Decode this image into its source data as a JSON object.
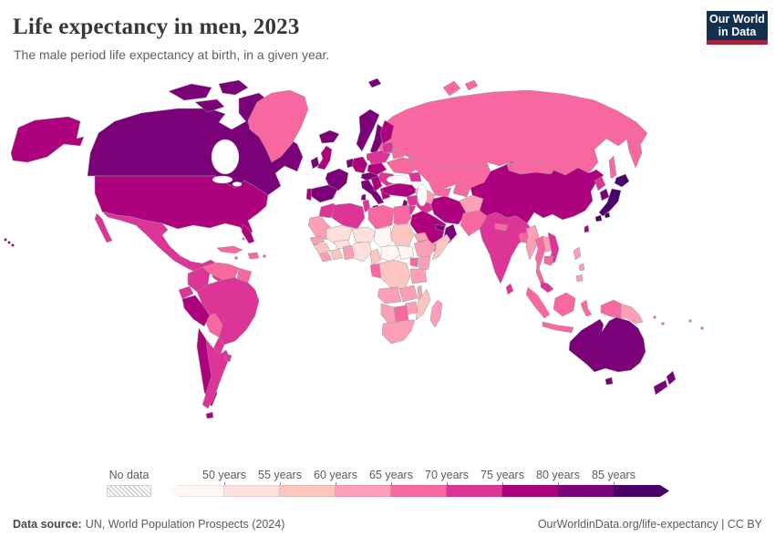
{
  "header": {
    "title": "Life expectancy in men, 2023",
    "subtitle": "The male period life expectancy at birth, in a given year."
  },
  "logo": {
    "line1": "Our World",
    "line2": "in Data",
    "bg": "#12304f",
    "accent": "#a8233a"
  },
  "legend": {
    "no_data_label": "No data",
    "tick_labels": [
      "50 years",
      "55 years",
      "60 years",
      "65 years",
      "70 years",
      "75 years",
      "80 years",
      "85 years"
    ]
  },
  "footer": {
    "source_label": "Data source:",
    "source_text": "UN, World Population Prospects (2024)",
    "right_text": "OurWorldinData.org/life-expectancy | CC BY"
  },
  "chart_data": {
    "type": "choropleth",
    "title": "Life expectancy in men, 2023",
    "unit": "years",
    "year": 2023,
    "legend_note": "values binned every 5 years from <50 to 85+",
    "bins": [
      {
        "range": "<50",
        "color": "#fff7f3"
      },
      {
        "range": "50-55",
        "color": "#fde0dd"
      },
      {
        "range": "55-60",
        "color": "#fcc5c0"
      },
      {
        "range": "60-65",
        "color": "#fa9fb5"
      },
      {
        "range": "65-70",
        "color": "#f768a1"
      },
      {
        "range": "70-75",
        "color": "#dd3497"
      },
      {
        "range": "75-80",
        "color": "#ae017e"
      },
      {
        "range": "80-85",
        "color": "#7a0177"
      },
      {
        "range": "85+",
        "color": "#49006a"
      }
    ],
    "countries": {
      "usa": {
        "name": "United States",
        "range": "75-80"
      },
      "canada": {
        "name": "Canada",
        "range": "80-85"
      },
      "greenland": {
        "name": "Greenland",
        "range": "65-70"
      },
      "mexico": {
        "name": "Mexico",
        "range": "70-75"
      },
      "central-america": {
        "name": "Central America",
        "range": "70-75"
      },
      "panama-costa-rica": {
        "name": "Panama / Costa Rica",
        "range": "70-75"
      },
      "cuba": {
        "name": "Cuba",
        "range": "65-70"
      },
      "hispaniola": {
        "name": "Hispaniola",
        "range": "65-70"
      },
      "caribbean-islands": {
        "name": "Caribbean islands",
        "range": "65-70"
      },
      "venezuela": {
        "name": "Venezuela",
        "range": "65-70"
      },
      "guianas": {
        "name": "Guyana / Suriname",
        "range": "65-70"
      },
      "colombia": {
        "name": "Colombia",
        "range": "70-75"
      },
      "ecuador": {
        "name": "Ecuador",
        "range": "70-75"
      },
      "peru": {
        "name": "Peru",
        "range": "75-80"
      },
      "brazil": {
        "name": "Brazil",
        "range": "70-75"
      },
      "bolivia": {
        "name": "Bolivia",
        "range": "65-70"
      },
      "paraguay": {
        "name": "Paraguay",
        "range": "70-75"
      },
      "chile": {
        "name": "Chile",
        "range": "75-80"
      },
      "argentina": {
        "name": "Argentina",
        "range": "70-75"
      },
      "uruguay": {
        "name": "Uruguay",
        "range": "70-75"
      },
      "iceland": {
        "name": "Iceland",
        "range": "80-85"
      },
      "norway": {
        "name": "Norway",
        "range": "80-85"
      },
      "sweden": {
        "name": "Sweden",
        "range": "80-85"
      },
      "finland": {
        "name": "Finland",
        "range": "75-80"
      },
      "denmark": {
        "name": "Denmark",
        "range": "75-80"
      },
      "united-kingdom": {
        "name": "United Kingdom",
        "range": "75-80"
      },
      "ireland": {
        "name": "Ireland",
        "range": "80-85"
      },
      "france": {
        "name": "France",
        "range": "80-85"
      },
      "spain": {
        "name": "Spain",
        "range": "80-85"
      },
      "portugal": {
        "name": "Portugal",
        "range": "75-80"
      },
      "germany": {
        "name": "Germany",
        "range": "75-80"
      },
      "benelux": {
        "name": "Benelux",
        "range": "80-85"
      },
      "switzerland-austria": {
        "name": "Switzerland / Austria",
        "range": "80-85"
      },
      "italy": {
        "name": "Italy",
        "range": "80-85"
      },
      "czechia-region": {
        "name": "Czechia / Slovakia / Hungary",
        "range": "75-80"
      },
      "poland": {
        "name": "Poland",
        "range": "70-75"
      },
      "baltics": {
        "name": "Baltic states",
        "range": "70-75"
      },
      "belarus": {
        "name": "Belarus",
        "range": "65-70"
      },
      "ukraine": {
        "name": "Ukraine",
        "range": "65-70"
      },
      "romania-bulgaria": {
        "name": "Romania / Bulgaria",
        "range": "70-75"
      },
      "west-balkans": {
        "name": "Western Balkans",
        "range": "75-80"
      },
      "greece": {
        "name": "Greece",
        "range": "75-80"
      },
      "russia": {
        "name": "Russia",
        "range": "65-70"
      },
      "turkey": {
        "name": "Turkey",
        "range": "75-80"
      },
      "caucasus": {
        "name": "Caucasus",
        "range": "70-75"
      },
      "syria": {
        "name": "Syria",
        "range": "70-75"
      },
      "israel-lebanon": {
        "name": "Israel / Lebanon",
        "range": "80-85"
      },
      "jordan": {
        "name": "Jordan",
        "range": "70-75"
      },
      "iraq": {
        "name": "Iraq",
        "range": "70-75"
      },
      "iran": {
        "name": "Iran",
        "range": "75-80"
      },
      "saudi-arabia": {
        "name": "Saudi Arabia",
        "range": "75-80"
      },
      "yemen": {
        "name": "Yemen",
        "range": "65-70"
      },
      "oman": {
        "name": "Oman",
        "range": "80-85"
      },
      "uae-qatar": {
        "name": "UAE / Qatar",
        "range": "80-85"
      },
      "kazakhstan": {
        "name": "Kazakhstan",
        "range": "65-70"
      },
      "uzbekistan": {
        "name": "Uzbekistan",
        "range": "65-70"
      },
      "turkmenistan": {
        "name": "Turkmenistan",
        "range": "60-65"
      },
      "kyrgyzstan-tajikistan": {
        "name": "Kyrgyzstan / Tajikistan",
        "range": "65-70"
      },
      "afghanistan": {
        "name": "Afghanistan",
        "range": "60-65"
      },
      "pakistan": {
        "name": "Pakistan",
        "range": "65-70"
      },
      "india": {
        "name": "India",
        "range": "70-75"
      },
      "nepal": {
        "name": "Nepal",
        "range": "65-70"
      },
      "bangladesh": {
        "name": "Bangladesh",
        "range": "65-70"
      },
      "sri-lanka": {
        "name": "Sri Lanka",
        "range": "70-75"
      },
      "myanmar": {
        "name": "Myanmar",
        "range": "60-65"
      },
      "thailand": {
        "name": "Thailand",
        "range": "65-70"
      },
      "laos": {
        "name": "Laos",
        "range": "60-65"
      },
      "vietnam": {
        "name": "Vietnam",
        "range": "70-75"
      },
      "cambodia": {
        "name": "Cambodia",
        "range": "65-70"
      },
      "malaysia": {
        "name": "Malaysia",
        "range": "70-75"
      },
      "indonesia": {
        "name": "Indonesia",
        "range": "65-70"
      },
      "philippines": {
        "name": "Philippines",
        "range": "60-65"
      },
      "papua-new-guinea": {
        "name": "Papua New Guinea",
        "range": "60-65"
      },
      "china": {
        "name": "China",
        "range": "75-80"
      },
      "mongolia": {
        "name": "Mongolia",
        "range": "65-70"
      },
      "north-korea": {
        "name": "North Korea",
        "range": "70-75"
      },
      "south-korea": {
        "name": "South Korea",
        "range": "80-85"
      },
      "japan": {
        "name": "Japan",
        "range": "85+"
      },
      "taiwan": {
        "name": "Taiwan",
        "range": "75-80"
      },
      "australia": {
        "name": "Australia",
        "range": "80-85"
      },
      "new-zealand": {
        "name": "New Zealand",
        "range": "80-85"
      },
      "pacific-islands": {
        "name": "Pacific islands",
        "range": "65-70"
      },
      "morocco": {
        "name": "Morocco",
        "range": "70-75"
      },
      "algeria": {
        "name": "Algeria",
        "range": "70-75"
      },
      "tunisia": {
        "name": "Tunisia",
        "range": "70-75"
      },
      "libya": {
        "name": "Libya",
        "range": "65-70"
      },
      "egypt": {
        "name": "Egypt",
        "range": "65-70"
      },
      "western-sahara-mauritania": {
        "name": "Mauritania / W. Sahara",
        "range": "60-65"
      },
      "mali": {
        "name": "Mali",
        "range": "50-55"
      },
      "niger": {
        "name": "Niger",
        "range": "50-55"
      },
      "chad": {
        "name": "Chad",
        "range": "<50"
      },
      "sudan": {
        "name": "Sudan",
        "range": "55-60"
      },
      "senegal": {
        "name": "Senegal",
        "range": "60-65"
      },
      "guinea-region": {
        "name": "Guinea",
        "range": "55-60"
      },
      "sierra-leone-liberia": {
        "name": "Sierra Leone / Liberia",
        "range": "60-65"
      },
      "ivory-coast": {
        "name": "Côte d'Ivoire",
        "range": "55-60"
      },
      "burkina-faso": {
        "name": "Burkina Faso",
        "range": "50-55"
      },
      "ghana-region": {
        "name": "Ghana / Togo / Benin",
        "range": "60-65"
      },
      "nigeria": {
        "name": "Nigeria",
        "range": "50-55"
      },
      "cameroon": {
        "name": "Cameroon",
        "range": "55-60"
      },
      "central-african-republic": {
        "name": "Central African Republic",
        "range": "<50"
      },
      "south-sudan": {
        "name": "South Sudan",
        "range": "<50"
      },
      "ethiopia": {
        "name": "Ethiopia",
        "range": "60-65"
      },
      "eritrea-djibouti": {
        "name": "Eritrea / Djibouti",
        "range": "60-65"
      },
      "somalia": {
        "name": "Somalia",
        "range": "55-60"
      },
      "kenya": {
        "name": "Kenya",
        "range": "60-65"
      },
      "uganda": {
        "name": "Uganda",
        "range": "65-70"
      },
      "drc": {
        "name": "Democratic Republic of Congo",
        "range": "55-60"
      },
      "gabon-congo": {
        "name": "Gabon / Congo",
        "range": "65-70"
      },
      "tanzania": {
        "name": "Tanzania",
        "range": "60-65"
      },
      "angola": {
        "name": "Angola",
        "range": "60-65"
      },
      "zambia": {
        "name": "Zambia",
        "range": "60-65"
      },
      "malawi": {
        "name": "Malawi",
        "range": "60-65"
      },
      "mozambique": {
        "name": "Mozambique",
        "range": "55-60"
      },
      "zimbabwe": {
        "name": "Zimbabwe",
        "range": "60-65"
      },
      "botswana": {
        "name": "Botswana",
        "range": "65-70"
      },
      "namibia": {
        "name": "Namibia",
        "range": "60-65"
      },
      "south-africa": {
        "name": "South Africa",
        "range": "60-65"
      },
      "madagascar": {
        "name": "Madagascar",
        "range": "60-65"
      }
    }
  }
}
